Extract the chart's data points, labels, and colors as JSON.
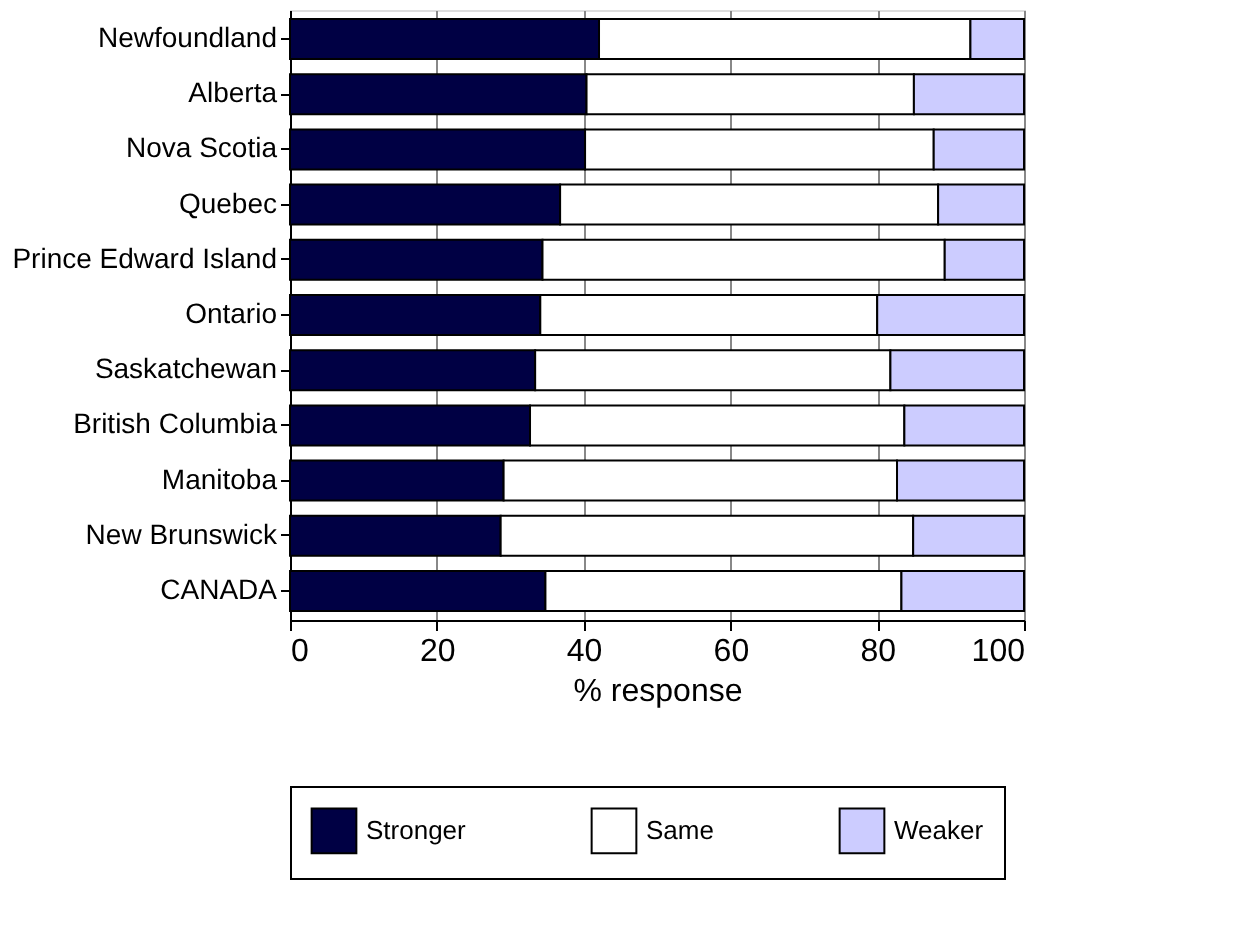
{
  "chart_data": {
    "type": "bar",
    "orientation": "horizontal",
    "stacked": true,
    "xlabel": "% response",
    "categories": [
      "Newfoundland",
      "Alberta",
      "Nova Scotia",
      "Quebec",
      "Prince Edward Island",
      "Ontario",
      "Saskatchewan",
      "British Columbia",
      "Manitoba",
      "New Brunswick",
      "CANADA"
    ],
    "series": [
      {
        "name": "Stronger",
        "color": "#000044",
        "values": [
          42.1,
          40.4,
          40.2,
          36.8,
          34.4,
          34.1,
          33.4,
          32.7,
          29.1,
          28.7,
          34.8
        ]
      },
      {
        "name": "Same",
        "color": "#ffffff",
        "values": [
          50.6,
          44.6,
          47.5,
          51.5,
          54.8,
          45.9,
          48.4,
          51.0,
          53.6,
          56.2,
          48.5
        ]
      },
      {
        "name": "Weaker",
        "color": "#ccccff",
        "values": [
          7.3,
          15.0,
          12.3,
          11.7,
          10.8,
          20.0,
          18.2,
          16.3,
          17.3,
          15.1,
          16.7
        ]
      }
    ],
    "xlim": [
      0,
      100
    ],
    "xticks": [
      0,
      20,
      40,
      60,
      80,
      100
    ],
    "grid": "x",
    "legend": "bottom"
  }
}
